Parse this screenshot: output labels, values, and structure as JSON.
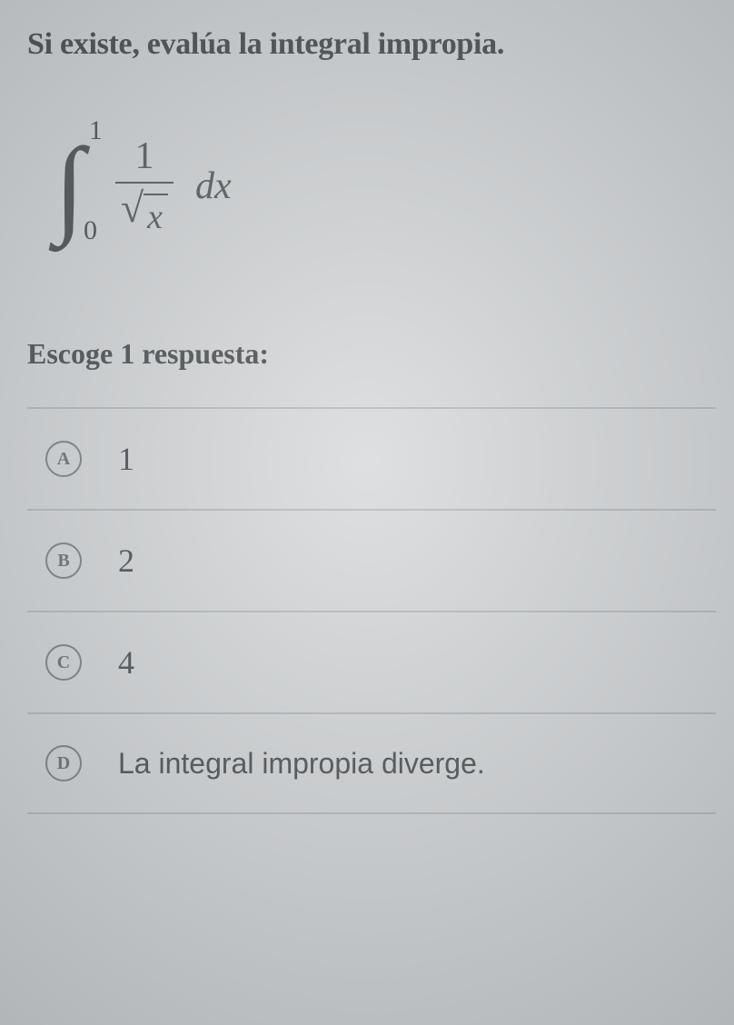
{
  "prompt": "Si existe, evalúa la integral impropia.",
  "integral": {
    "upper_limit": "1",
    "lower_limit": "0",
    "numerator": "1",
    "radicand": "x",
    "differential": "dx"
  },
  "choose_label": "Escoge 1 respuesta:",
  "options": [
    {
      "letter": "A",
      "text": "1",
      "is_math": true
    },
    {
      "letter": "B",
      "text": "2",
      "is_math": true
    },
    {
      "letter": "C",
      "text": "4",
      "is_math": true
    },
    {
      "letter": "D",
      "text": "La integral impropia diverge.",
      "is_math": false
    }
  ],
  "colors": {
    "background": "#d8dadb",
    "text_primary": "#464a4d",
    "math_color": "#555a5e",
    "divider": "#b7bcc0",
    "circle_border": "#7b8186"
  },
  "typography": {
    "prompt_fontsize": 34,
    "choose_fontsize": 32,
    "option_fontsize": 32,
    "letter_fontsize": 20,
    "integral_body_fontsize": 120,
    "limit_fontsize": 30,
    "fraction_fontsize": 42
  }
}
